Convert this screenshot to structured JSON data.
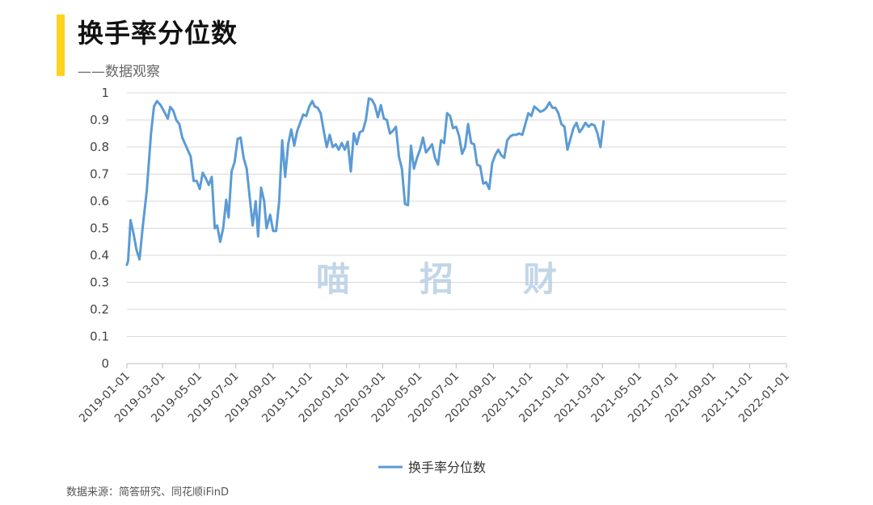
{
  "header": {
    "title": "换手率分位数",
    "subtitle": "——数据观察"
  },
  "watermark": [
    "喵",
    "招",
    "财"
  ],
  "source": "数据来源：简答研究、同花顺iFinD",
  "colors": {
    "accent": "#ffd21f",
    "series": "#5b9bd5",
    "grid": "#d9d9d9"
  },
  "chart_data": {
    "type": "line",
    "ylim": [
      0,
      1
    ],
    "y_ticks": [
      "0",
      "0.1",
      "0.2",
      "0.3",
      "0.4",
      "0.5",
      "0.6",
      "0.7",
      "0.8",
      "0.9",
      "1"
    ],
    "x_tick_labels": [
      "2019-01-01",
      "2019-03-01",
      "2019-05-01",
      "2019-07-01",
      "2019-09-01",
      "2019-11-01",
      "2020-01-01",
      "2020-03-01",
      "2020-05-01",
      "2020-07-01",
      "2020-09-01",
      "2020-11-01",
      "2021-01-01",
      "2021-03-01",
      "2021-05-01",
      "2021-07-01",
      "2021-09-01",
      "2021-11-01",
      "2022-01-01"
    ],
    "grid": true,
    "legend": "bottom",
    "series": [
      {
        "name": "换手率分位数",
        "points": [
          [
            "2019-01-01",
            0.365
          ],
          [
            "2019-01-03",
            0.38
          ],
          [
            "2019-01-07",
            0.53
          ],
          [
            "2019-01-12",
            0.48
          ],
          [
            "2019-01-17",
            0.42
          ],
          [
            "2019-01-22",
            0.385
          ],
          [
            "2019-01-27",
            0.5
          ],
          [
            "2019-02-03",
            0.64
          ],
          [
            "2019-02-10",
            0.85
          ],
          [
            "2019-02-15",
            0.95
          ],
          [
            "2019-02-20",
            0.97
          ],
          [
            "2019-02-26",
            0.955
          ],
          [
            "2019-03-04",
            0.93
          ],
          [
            "2019-03-10",
            0.905
          ],
          [
            "2019-03-14",
            0.948
          ],
          [
            "2019-03-19",
            0.935
          ],
          [
            "2019-03-24",
            0.9
          ],
          [
            "2019-03-29",
            0.885
          ],
          [
            "2019-04-03",
            0.835
          ],
          [
            "2019-04-08",
            0.81
          ],
          [
            "2019-04-13",
            0.785
          ],
          [
            "2019-04-17",
            0.765
          ],
          [
            "2019-04-22",
            0.675
          ],
          [
            "2019-04-27",
            0.675
          ],
          [
            "2019-05-02",
            0.645
          ],
          [
            "2019-05-07",
            0.705
          ],
          [
            "2019-05-12",
            0.685
          ],
          [
            "2019-05-17",
            0.66
          ],
          [
            "2019-05-22",
            0.69
          ],
          [
            "2019-05-27",
            0.5
          ],
          [
            "2019-05-31",
            0.51
          ],
          [
            "2019-06-05",
            0.45
          ],
          [
            "2019-06-10",
            0.5
          ],
          [
            "2019-06-15",
            0.605
          ],
          [
            "2019-06-19",
            0.54
          ],
          [
            "2019-06-24",
            0.71
          ],
          [
            "2019-06-29",
            0.745
          ],
          [
            "2019-07-04",
            0.83
          ],
          [
            "2019-07-09",
            0.835
          ],
          [
            "2019-07-14",
            0.76
          ],
          [
            "2019-07-19",
            0.72
          ],
          [
            "2019-07-24",
            0.615
          ],
          [
            "2019-07-29",
            0.51
          ],
          [
            "2019-08-03",
            0.6
          ],
          [
            "2019-08-07",
            0.47
          ],
          [
            "2019-08-12",
            0.65
          ],
          [
            "2019-08-17",
            0.6
          ],
          [
            "2019-08-21",
            0.5
          ],
          [
            "2019-08-27",
            0.55
          ],
          [
            "2019-09-01",
            0.49
          ],
          [
            "2019-09-06",
            0.49
          ],
          [
            "2019-09-11",
            0.6
          ],
          [
            "2019-09-16",
            0.825
          ],
          [
            "2019-09-21",
            0.69
          ],
          [
            "2019-09-26",
            0.81
          ],
          [
            "2019-10-01",
            0.865
          ],
          [
            "2019-10-06",
            0.805
          ],
          [
            "2019-10-11",
            0.86
          ],
          [
            "2019-10-16",
            0.89
          ],
          [
            "2019-10-21",
            0.92
          ],
          [
            "2019-10-26",
            0.915
          ],
          [
            "2019-10-31",
            0.95
          ],
          [
            "2019-11-05",
            0.97
          ],
          [
            "2019-11-09",
            0.95
          ],
          [
            "2019-11-14",
            0.945
          ],
          [
            "2019-11-19",
            0.925
          ],
          [
            "2019-11-24",
            0.86
          ],
          [
            "2019-11-29",
            0.8
          ],
          [
            "2019-12-04",
            0.845
          ],
          [
            "2019-12-09",
            0.8
          ],
          [
            "2019-12-14",
            0.81
          ],
          [
            "2019-12-19",
            0.79
          ],
          [
            "2019-12-24",
            0.815
          ],
          [
            "2019-12-29",
            0.79
          ],
          [
            "2020-01-03",
            0.82
          ],
          [
            "2020-01-08",
            0.71
          ],
          [
            "2020-01-13",
            0.85
          ],
          [
            "2020-01-18",
            0.81
          ],
          [
            "2020-01-23",
            0.855
          ],
          [
            "2020-01-28",
            0.86
          ],
          [
            "2020-02-02",
            0.9
          ],
          [
            "2020-02-07",
            0.98
          ],
          [
            "2020-02-12",
            0.975
          ],
          [
            "2020-02-17",
            0.955
          ],
          [
            "2020-02-22",
            0.91
          ],
          [
            "2020-02-27",
            0.955
          ],
          [
            "2020-03-03",
            0.905
          ],
          [
            "2020-03-08",
            0.9
          ],
          [
            "2020-03-13",
            0.85
          ],
          [
            "2020-03-18",
            0.86
          ],
          [
            "2020-03-23",
            0.875
          ],
          [
            "2020-03-28",
            0.765
          ],
          [
            "2020-04-02",
            0.72
          ],
          [
            "2020-04-07",
            0.59
          ],
          [
            "2020-04-12",
            0.585
          ],
          [
            "2020-04-17",
            0.805
          ],
          [
            "2020-04-22",
            0.72
          ],
          [
            "2020-04-27",
            0.76
          ],
          [
            "2020-05-02",
            0.79
          ],
          [
            "2020-05-07",
            0.835
          ],
          [
            "2020-05-12",
            0.78
          ],
          [
            "2020-05-17",
            0.795
          ],
          [
            "2020-05-22",
            0.81
          ],
          [
            "2020-05-27",
            0.76
          ],
          [
            "2020-06-01",
            0.735
          ],
          [
            "2020-06-06",
            0.825
          ],
          [
            "2020-06-11",
            0.815
          ],
          [
            "2020-06-16",
            0.925
          ],
          [
            "2020-06-21",
            0.915
          ],
          [
            "2020-06-26",
            0.87
          ],
          [
            "2020-07-01",
            0.875
          ],
          [
            "2020-07-06",
            0.84
          ],
          [
            "2020-07-11",
            0.775
          ],
          [
            "2020-07-16",
            0.8
          ],
          [
            "2020-07-21",
            0.885
          ],
          [
            "2020-07-26",
            0.815
          ],
          [
            "2020-07-31",
            0.81
          ],
          [
            "2020-08-05",
            0.735
          ],
          [
            "2020-08-10",
            0.73
          ],
          [
            "2020-08-15",
            0.665
          ],
          [
            "2020-08-20",
            0.67
          ],
          [
            "2020-08-25",
            0.645
          ],
          [
            "2020-08-30",
            0.74
          ],
          [
            "2020-09-04",
            0.77
          ],
          [
            "2020-09-09",
            0.79
          ],
          [
            "2020-09-14",
            0.77
          ],
          [
            "2020-09-19",
            0.76
          ],
          [
            "2020-09-24",
            0.825
          ],
          [
            "2020-09-29",
            0.84
          ],
          [
            "2020-10-04",
            0.845
          ],
          [
            "2020-10-09",
            0.845
          ],
          [
            "2020-10-14",
            0.85
          ],
          [
            "2020-10-19",
            0.845
          ],
          [
            "2020-10-24",
            0.885
          ],
          [
            "2020-10-29",
            0.925
          ],
          [
            "2020-11-03",
            0.915
          ],
          [
            "2020-11-08",
            0.95
          ],
          [
            "2020-11-13",
            0.94
          ],
          [
            "2020-11-18",
            0.93
          ],
          [
            "2020-11-23",
            0.935
          ],
          [
            "2020-11-28",
            0.945
          ],
          [
            "2020-12-03",
            0.965
          ],
          [
            "2020-12-08",
            0.945
          ],
          [
            "2020-12-13",
            0.945
          ],
          [
            "2020-12-18",
            0.925
          ],
          [
            "2020-12-23",
            0.885
          ],
          [
            "2020-12-28",
            0.875
          ],
          [
            "2021-01-02",
            0.79
          ],
          [
            "2021-01-07",
            0.83
          ],
          [
            "2021-01-12",
            0.87
          ],
          [
            "2021-01-17",
            0.89
          ],
          [
            "2021-01-22",
            0.855
          ],
          [
            "2021-01-27",
            0.87
          ],
          [
            "2021-02-01",
            0.89
          ],
          [
            "2021-02-06",
            0.875
          ],
          [
            "2021-02-11",
            0.885
          ],
          [
            "2021-02-16",
            0.88
          ],
          [
            "2021-02-21",
            0.85
          ],
          [
            "2021-02-26",
            0.8
          ],
          [
            "2021-03-03",
            0.895
          ]
        ]
      }
    ]
  }
}
